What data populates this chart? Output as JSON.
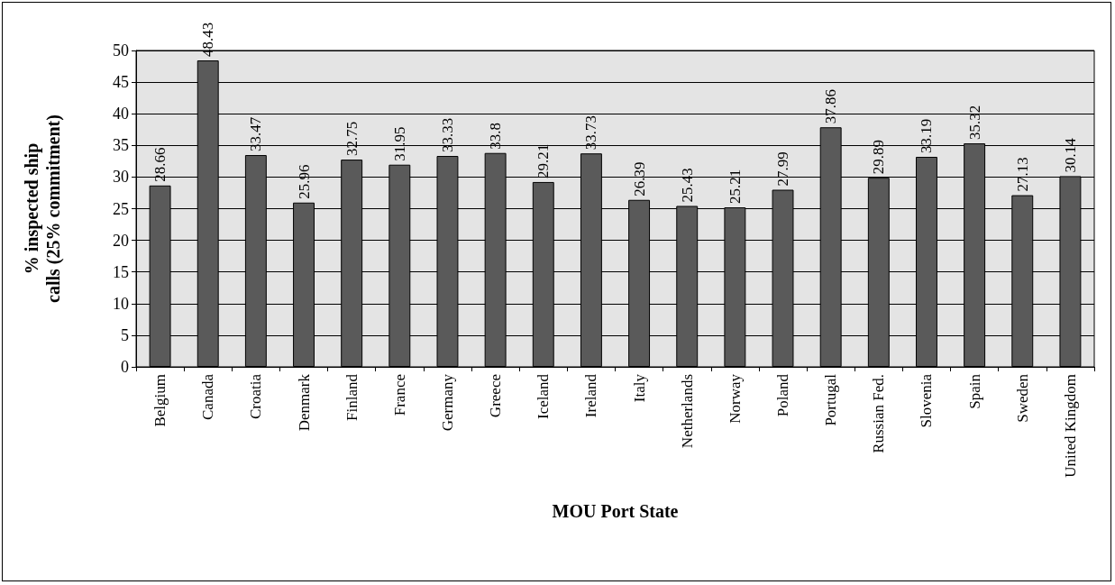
{
  "chart_data": {
    "type": "bar",
    "xlabel": "MOU Port State",
    "ylabel": "% inspected ship calls (25% commitment)",
    "categories": [
      "Belgium",
      "Canada",
      "Croatia",
      "Denmark",
      "Finland",
      "France",
      "Germany",
      "Greece",
      "Iceland",
      "Ireland",
      "Italy",
      "Netherlands",
      "Norway",
      "Poland",
      "Portugal",
      "Russian Fed.",
      "Slovenia",
      "Spain",
      "Sweden",
      "United Kingdom"
    ],
    "values": [
      28.66,
      48.43,
      33.47,
      25.96,
      32.75,
      31.95,
      33.33,
      33.8,
      29.21,
      33.73,
      26.39,
      25.43,
      25.21,
      27.99,
      37.86,
      29.89,
      33.19,
      35.32,
      27.13,
      30.14
    ],
    "color": "#5a5a5a",
    "ylim": [
      0,
      50
    ],
    "yticks": [
      0,
      5,
      10,
      15,
      20,
      25,
      30,
      35,
      40,
      45,
      50
    ],
    "grid": "y",
    "data_labels": true
  }
}
